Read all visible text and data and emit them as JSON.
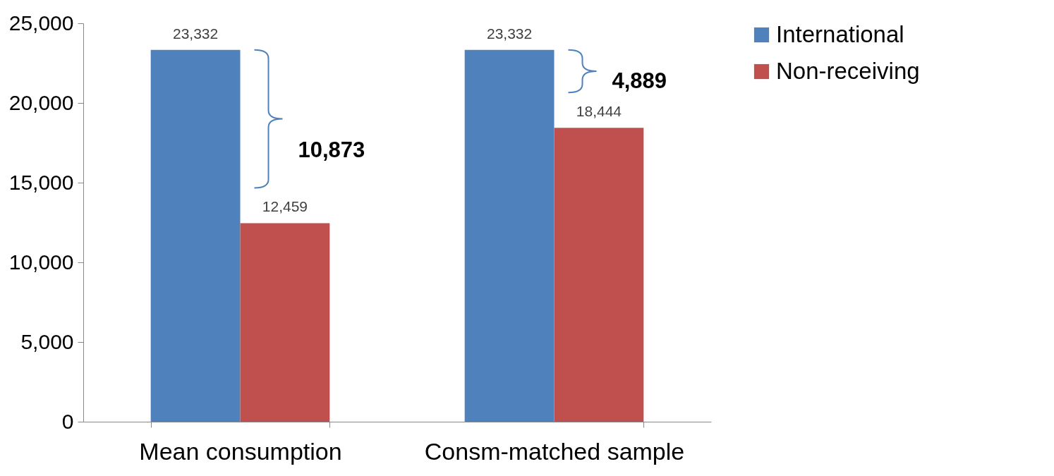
{
  "chart_data": {
    "type": "bar",
    "categories": [
      "Mean consumption",
      "Consm-matched sample"
    ],
    "series": [
      {
        "name": "International",
        "color": "#4f81bd",
        "values": [
          23332,
          23332
        ],
        "value_labels": [
          "23,332",
          "23,332"
        ]
      },
      {
        "name": "Non-receiving",
        "color": "#c0504d",
        "values": [
          12459,
          18444
        ],
        "value_labels": [
          "12,459",
          "18,444"
        ]
      }
    ],
    "ylim": [
      0,
      25000
    ],
    "yticks": [
      0,
      {
        "value": 5000,
        "label": "5,000"
      },
      {
        "value": 10000,
        "label": "10,000"
      },
      {
        "value": 15000,
        "label": "15,000"
      },
      {
        "value": 20000,
        "label": "20,000"
      },
      {
        "value": 25000,
        "label": "25,000"
      }
    ],
    "grid": false,
    "legend": "right",
    "annotations": [
      "10,873",
      "4,889"
    ]
  }
}
